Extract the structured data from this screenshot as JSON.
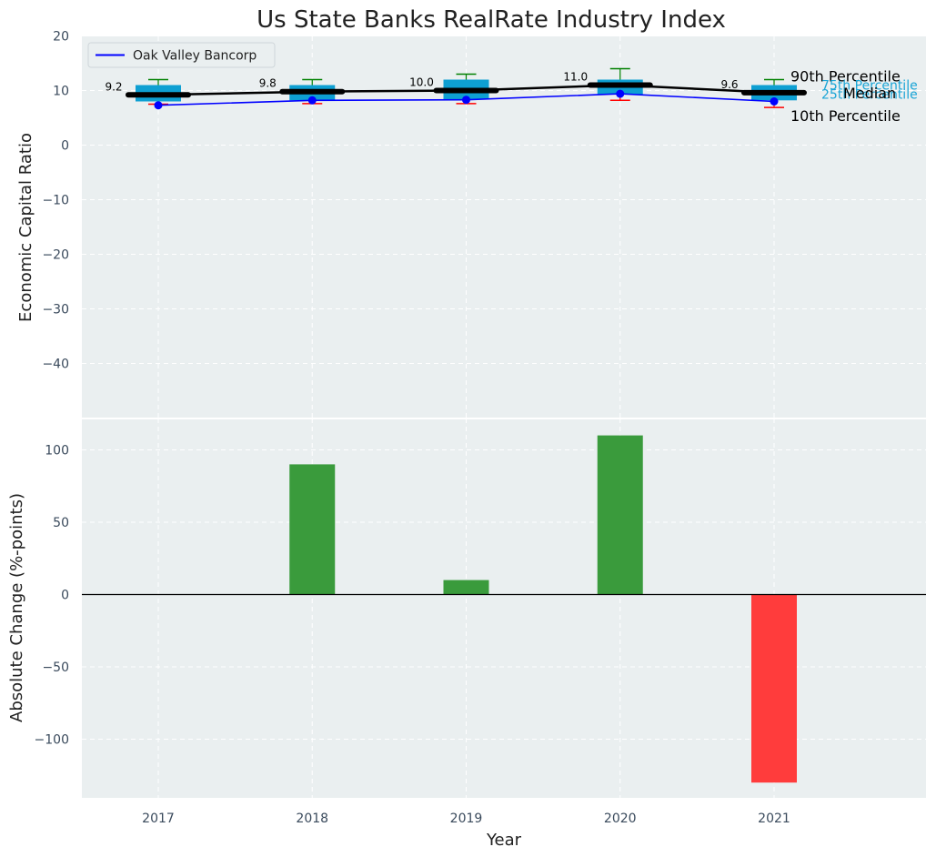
{
  "chart_data": [
    {
      "type": "box",
      "title": "Us State Banks RealRate Industry Index",
      "ylabel": "Economic Capital Ratio",
      "ylim": [
        -50,
        20
      ],
      "yticks": [
        20,
        10,
        0,
        -10,
        -20,
        -30,
        -40
      ],
      "categories": [
        "2017",
        "2018",
        "2019",
        "2020",
        "2021"
      ],
      "grid": true,
      "legend_position": "top-left",
      "percentiles": {
        "p10": [
          7.5,
          7.6,
          7.6,
          8.2,
          6.9
        ],
        "p25": [
          8.0,
          8.2,
          8.4,
          9.3,
          8.2
        ],
        "median": [
          9.2,
          9.8,
          10.0,
          11.0,
          9.6
        ],
        "p75": [
          11.0,
          11.0,
          12.0,
          12.0,
          11.0
        ],
        "p90": [
          12.0,
          12.0,
          13.0,
          14.0,
          12.0
        ]
      },
      "median_labels": [
        "9.2",
        "9.8",
        "10.0",
        "11.0",
        "9.6"
      ],
      "series": [
        {
          "name": "Oak Valley Bancorp",
          "values": [
            7.3,
            8.2,
            8.3,
            9.4,
            8.0
          ],
          "color": "#0000ff"
        }
      ],
      "annotations": {
        "p90": "90th Percentile",
        "p75": "75th Percentile",
        "median": "Median",
        "p25": "25th Percentile",
        "p10": "10th Percentile"
      },
      "colors": {
        "box": "#0e9fd2",
        "median": "#000000",
        "p90": "#008000",
        "p10": "#ff0000",
        "background": "#eaeff0"
      }
    },
    {
      "type": "bar",
      "xlabel": "Year",
      "ylabel": "Absolute Change (%-points)",
      "ylim": [
        -140,
        125
      ],
      "yticks": [
        100,
        50,
        0,
        -50,
        -100
      ],
      "categories": [
        "2017",
        "2018",
        "2019",
        "2020",
        "2021"
      ],
      "values": [
        0,
        90,
        10,
        110,
        -130
      ],
      "grid": true,
      "colors": {
        "positive": "#3a9b3c",
        "negative": "#ff3c3c"
      }
    }
  ]
}
